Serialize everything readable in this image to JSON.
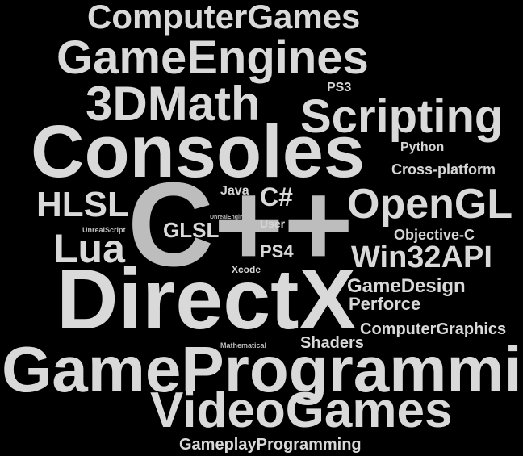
{
  "word_cloud": {
    "words": [
      {
        "key": "computergames",
        "text": "ComputerGames"
      },
      {
        "key": "gameengines",
        "text": "GameEngines"
      },
      {
        "key": "math3d",
        "text": "3DMath"
      },
      {
        "key": "ps3",
        "text": "PS3"
      },
      {
        "key": "scripting",
        "text": "Scripting"
      },
      {
        "key": "consoles",
        "text": "Consoles"
      },
      {
        "key": "python",
        "text": "Python"
      },
      {
        "key": "crossplatform",
        "text": "Cross-platform"
      },
      {
        "key": "java",
        "text": "Java"
      },
      {
        "key": "csharp",
        "text": "C#"
      },
      {
        "key": "hlsl",
        "text": "HLSL"
      },
      {
        "key": "opengl",
        "text": "OpenGL"
      },
      {
        "key": "cpp",
        "text": "C++"
      },
      {
        "key": "unrealengine",
        "text": "UnrealEngine"
      },
      {
        "key": "user",
        "text": "User"
      },
      {
        "key": "glsl",
        "text": "GLSL"
      },
      {
        "key": "unrealscript",
        "text": "UnrealScript"
      },
      {
        "key": "objectivec",
        "text": "Objective-C"
      },
      {
        "key": "lua",
        "text": "Lua"
      },
      {
        "key": "ps4",
        "text": "PS4"
      },
      {
        "key": "win32api",
        "text": "Win32API"
      },
      {
        "key": "xcode",
        "text": "Xcode"
      },
      {
        "key": "directx",
        "text": "DirectX"
      },
      {
        "key": "gamedesign",
        "text": "GameDesign"
      },
      {
        "key": "perforce",
        "text": "Perforce"
      },
      {
        "key": "computergraphics",
        "text": "ComputerGraphics"
      },
      {
        "key": "shaders",
        "text": "Shaders"
      },
      {
        "key": "mathematical",
        "text": "Mathematical"
      },
      {
        "key": "gameprogramming",
        "text": "GameProgramming"
      },
      {
        "key": "videogames",
        "text": "VideoGames"
      },
      {
        "key": "gameplayprogramming",
        "text": "GameplayProgramming"
      }
    ]
  },
  "colors": {
    "background": "#000000",
    "text": "#d9d9d9"
  }
}
